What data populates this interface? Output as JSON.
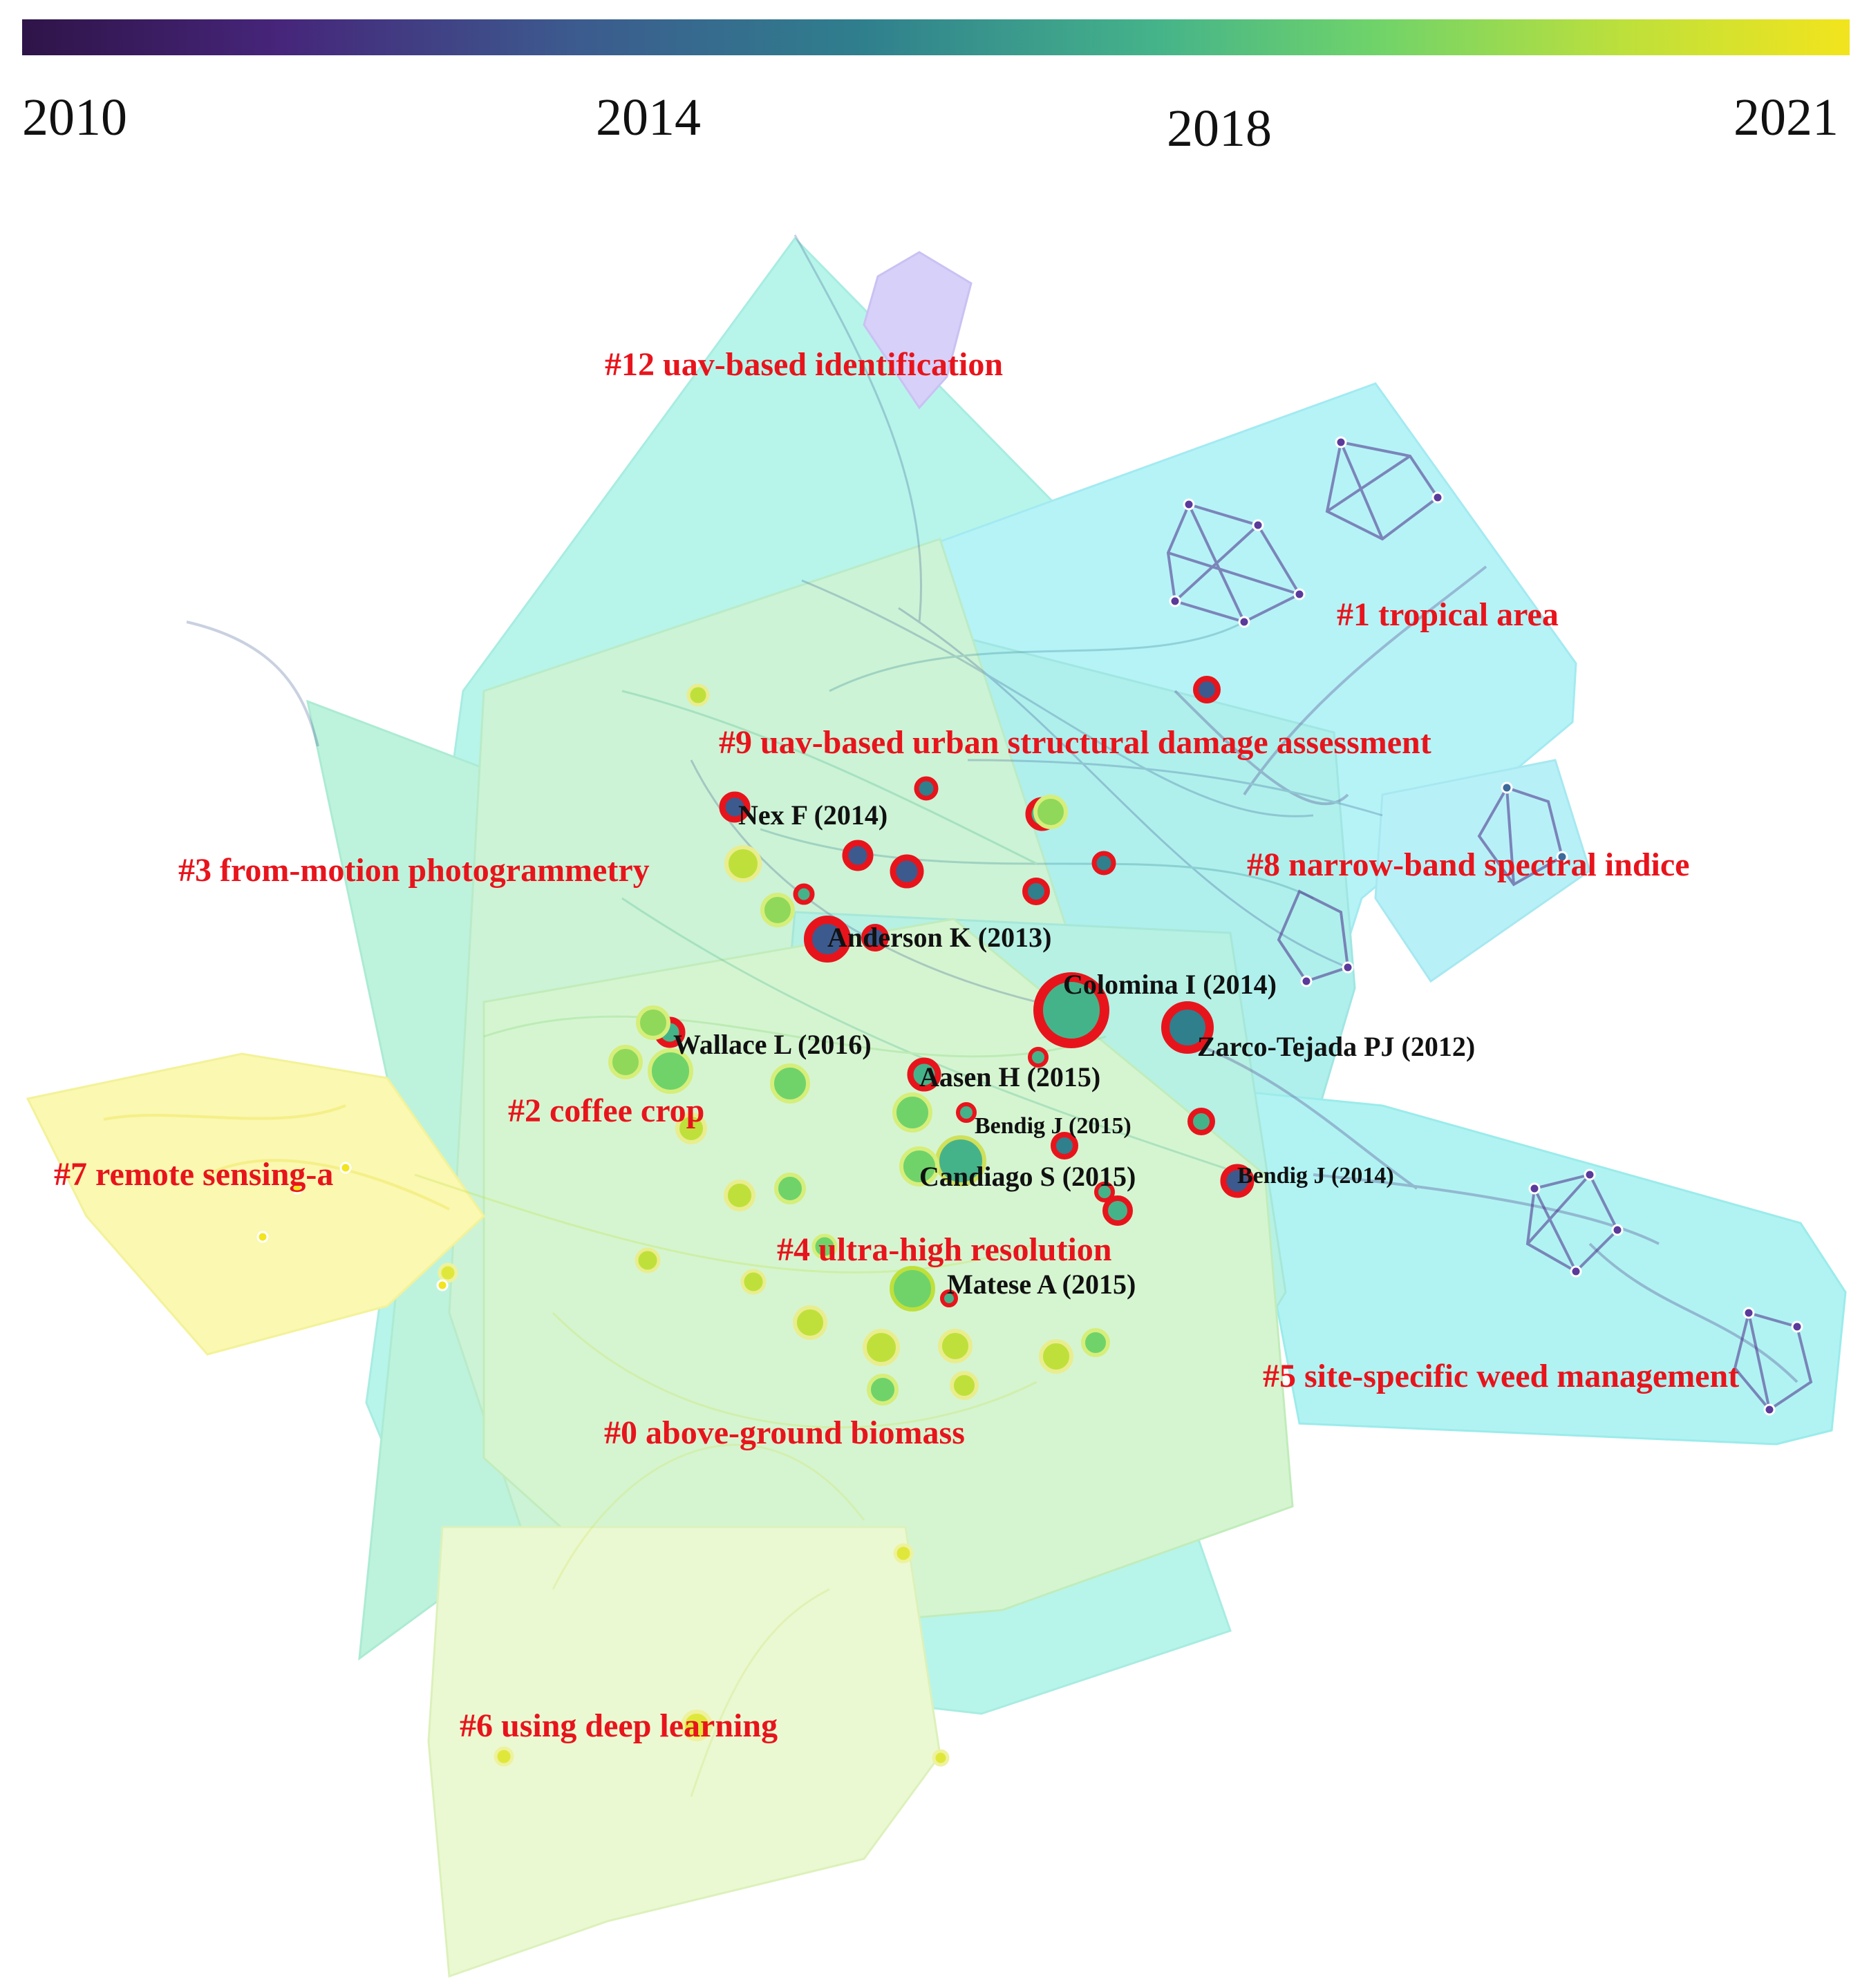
{
  "legend": {
    "title_years": [
      "2010",
      "2014",
      "2018",
      "2021"
    ],
    "colors": [
      "#2e1448",
      "#46257a",
      "#3c5a8e",
      "#2f7f8d",
      "#45b38a",
      "#6fd36a",
      "#bfe03a",
      "#f2e41d"
    ]
  },
  "clusters": [
    {
      "id": "c12",
      "label": "#12 uav-based identification",
      "color": "#5fe8c8"
    },
    {
      "id": "c1",
      "label": "#1 tropical area",
      "color": "#58e5e9"
    },
    {
      "id": "c9",
      "label": "#9 uav-based urban structural damage assessment",
      "color": "#3ddbd0"
    },
    {
      "id": "c3",
      "label": "#3 from-motion photogrammetry",
      "color": "#63e0b0"
    },
    {
      "id": "c8",
      "label": "#8 narrow-band spectral indice",
      "color": "#55dde8"
    },
    {
      "id": "c2",
      "label": "#2 coffee crop",
      "color": "#8be29a"
    },
    {
      "id": "c7",
      "label": "#7 remote sensing-a",
      "color": "#f2ef3a"
    },
    {
      "id": "c4",
      "label": "#4 ultra-high resolution",
      "color": "#53dcc6"
    },
    {
      "id": "c5",
      "label": "#5 site-specific weed management",
      "color": "#4fe3e3"
    },
    {
      "id": "c0",
      "label": "#0 above-ground biomass",
      "color": "#9fe58f"
    },
    {
      "id": "c6",
      "label": "#6 using deep learning",
      "color": "#cdf08e"
    }
  ],
  "authors": [
    {
      "label": "Nex F (2014)"
    },
    {
      "label": "Anderson K (2013)"
    },
    {
      "label": "Colomina I (2014)"
    },
    {
      "label": "Zarco-Tejada PJ (2012)"
    },
    {
      "label": "Wallace L (2016)"
    },
    {
      "label": "Aasen H (2015)"
    },
    {
      "label": "Bendig J (2015)"
    },
    {
      "label": "Candiago S (2015)"
    },
    {
      "label": "Bendig J (2014)"
    },
    {
      "label": "Matese A (2015)"
    }
  ]
}
